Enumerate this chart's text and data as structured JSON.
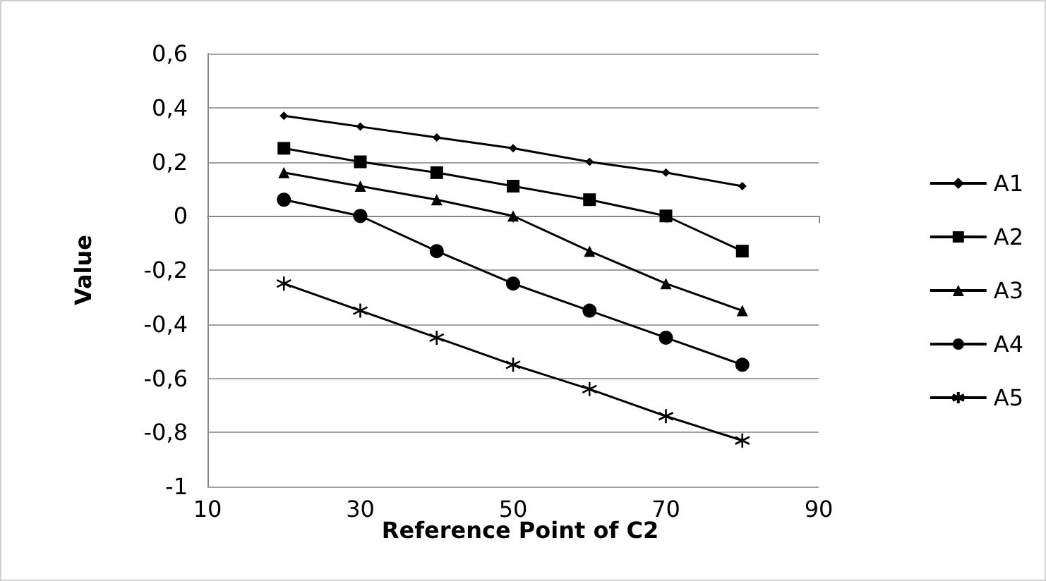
{
  "chart_data": {
    "type": "line",
    "xlabel": "Reference Point of C2",
    "ylabel": "Value",
    "x": [
      20,
      30,
      40,
      50,
      60,
      70,
      80
    ],
    "xlim": [
      10,
      90
    ],
    "xticks": [
      10,
      30,
      50,
      70,
      90
    ],
    "ylim": [
      -1,
      0.6
    ],
    "yticks": [
      {
        "value": -1,
        "label": "-1"
      },
      {
        "value": -0.8,
        "label": "-0,8"
      },
      {
        "value": -0.6,
        "label": "-0,6"
      },
      {
        "value": -0.4,
        "label": "-0,4"
      },
      {
        "value": -0.2,
        "label": "-0,2"
      },
      {
        "value": 0,
        "label": "0"
      },
      {
        "value": 0.2,
        "label": "0,2"
      },
      {
        "value": 0.4,
        "label": "0,4"
      },
      {
        "value": 0.6,
        "label": "0,6"
      }
    ],
    "grid": "y",
    "legend": "right",
    "series": [
      {
        "name": "A1",
        "color": "#000000",
        "marker": "diamond",
        "values": [
          0.37,
          0.33,
          0.29,
          0.25,
          0.2,
          0.16,
          0.11
        ]
      },
      {
        "name": "A2",
        "color": "#000000",
        "marker": "square",
        "values": [
          0.25,
          0.2,
          0.16,
          0.11,
          0.06,
          0,
          -0.13
        ]
      },
      {
        "name": "A3",
        "color": "#000000",
        "marker": "triangle",
        "values": [
          0.16,
          0.11,
          0.06,
          0,
          -0.13,
          -0.25,
          -0.35
        ]
      },
      {
        "name": "A4",
        "color": "#000000",
        "marker": "circle",
        "values": [
          0.06,
          0,
          -0.13,
          -0.25,
          -0.35,
          -0.45,
          -0.55
        ]
      },
      {
        "name": "A5",
        "color": "#000000",
        "marker": "cross",
        "values": [
          -0.25,
          -0.35,
          -0.45,
          -0.55,
          -0.64,
          -0.74,
          -0.83
        ]
      }
    ]
  }
}
